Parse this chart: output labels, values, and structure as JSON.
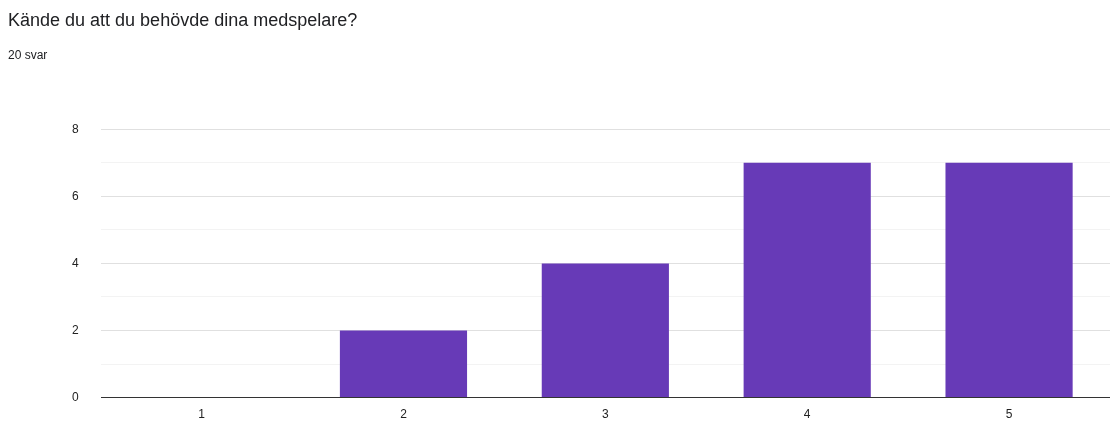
{
  "chart_data": {
    "type": "bar",
    "title": "Kände du att du behövde dina medspelare?",
    "subtitle": "20 svar",
    "categories": [
      "1",
      "2",
      "3",
      "4",
      "5"
    ],
    "values": [
      0,
      2,
      4,
      7,
      7
    ],
    "color": "#673ab7",
    "ylim": [
      0,
      8
    ],
    "yticks": [
      0,
      {
        "value": 1,
        "label": null
      },
      2,
      {
        "value": 3,
        "label": null
      },
      4,
      {
        "value": 5,
        "label": null
      },
      6,
      {
        "value": 7,
        "label": null
      },
      8
    ],
    "grid": "y",
    "legend": false
  }
}
